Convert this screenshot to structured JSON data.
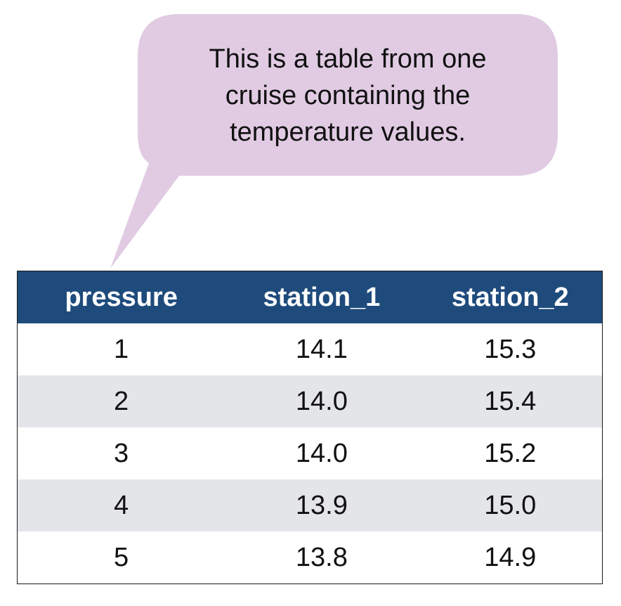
{
  "callout": {
    "lines": [
      "This is a table from one",
      "cruise containing the",
      "temperature values."
    ],
    "fill_color": "#e1cbe3"
  },
  "table": {
    "header_color": "#1f4b7c",
    "stripe_color": "#e4e5e9",
    "columns": [
      "pressure",
      "station_1",
      "station_2"
    ],
    "rows": [
      [
        "1",
        "14.1",
        "15.3"
      ],
      [
        "2",
        "14.0",
        "15.4"
      ],
      [
        "3",
        "14.0",
        "15.2"
      ],
      [
        "4",
        "13.9",
        "15.0"
      ],
      [
        "5",
        "13.8",
        "14.9"
      ]
    ]
  }
}
